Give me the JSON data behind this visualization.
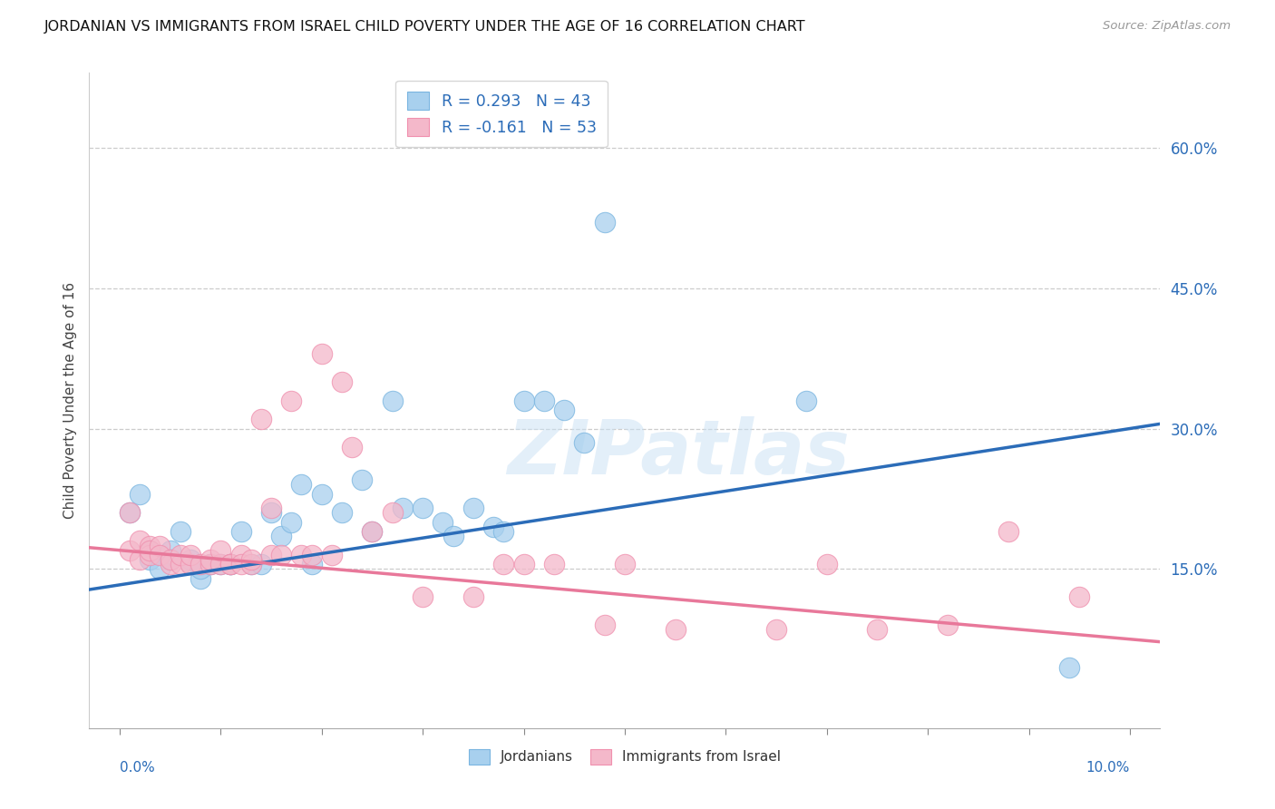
{
  "title": "JORDANIAN VS IMMIGRANTS FROM ISRAEL CHILD POVERTY UNDER THE AGE OF 16 CORRELATION CHART",
  "source": "Source: ZipAtlas.com",
  "ylabel": "Child Poverty Under the Age of 16",
  "blue_color": "#a8d0ee",
  "pink_color": "#f4b8ca",
  "blue_edge_color": "#7ab5e0",
  "pink_edge_color": "#f090ae",
  "blue_line_color": "#2b6cb8",
  "pink_line_color": "#e8789a",
  "watermark": "ZIPatlas",
  "blue_R": 0.293,
  "blue_N": 43,
  "pink_R": -0.161,
  "pink_N": 53,
  "right_yticks": [
    0.15,
    0.3,
    0.45,
    0.6
  ],
  "right_yticklabels": [
    "15.0%",
    "30.0%",
    "45.0%",
    "60.0%"
  ],
  "xlim": [
    0.0,
    0.1
  ],
  "ylim": [
    0.0,
    0.65
  ],
  "blue_line_x0": 0.0,
  "blue_line_y0": 0.133,
  "blue_line_x1": 0.1,
  "blue_line_y1": 0.3,
  "pink_line_x0": 0.0,
  "pink_line_y0": 0.17,
  "pink_line_x1": 0.1,
  "pink_line_y1": 0.075,
  "jordanians_x": [
    0.001,
    0.002,
    0.003,
    0.003,
    0.004,
    0.005,
    0.005,
    0.006,
    0.007,
    0.007,
    0.008,
    0.008,
    0.009,
    0.01,
    0.011,
    0.011,
    0.012,
    0.013,
    0.014,
    0.015,
    0.016,
    0.017,
    0.018,
    0.019,
    0.02,
    0.022,
    0.024,
    0.025,
    0.027,
    0.028,
    0.03,
    0.032,
    0.033,
    0.035,
    0.037,
    0.038,
    0.04,
    0.042,
    0.044,
    0.046,
    0.048,
    0.068,
    0.094
  ],
  "jordanians_y": [
    0.21,
    0.23,
    0.16,
    0.17,
    0.15,
    0.17,
    0.16,
    0.19,
    0.155,
    0.16,
    0.14,
    0.15,
    0.155,
    0.155,
    0.155,
    0.155,
    0.19,
    0.155,
    0.155,
    0.21,
    0.185,
    0.2,
    0.24,
    0.155,
    0.23,
    0.21,
    0.245,
    0.19,
    0.33,
    0.215,
    0.215,
    0.2,
    0.185,
    0.215,
    0.195,
    0.19,
    0.33,
    0.33,
    0.32,
    0.285,
    0.52,
    0.33,
    0.045
  ],
  "immigrants_x": [
    0.001,
    0.001,
    0.002,
    0.002,
    0.003,
    0.003,
    0.003,
    0.004,
    0.004,
    0.005,
    0.005,
    0.006,
    0.006,
    0.007,
    0.007,
    0.008,
    0.009,
    0.009,
    0.01,
    0.01,
    0.011,
    0.011,
    0.012,
    0.012,
    0.013,
    0.013,
    0.014,
    0.015,
    0.015,
    0.016,
    0.017,
    0.018,
    0.019,
    0.02,
    0.021,
    0.022,
    0.023,
    0.025,
    0.027,
    0.03,
    0.035,
    0.038,
    0.04,
    0.043,
    0.048,
    0.05,
    0.055,
    0.065,
    0.07,
    0.075,
    0.082,
    0.088,
    0.095
  ],
  "immigrants_y": [
    0.21,
    0.17,
    0.18,
    0.16,
    0.175,
    0.165,
    0.17,
    0.175,
    0.165,
    0.155,
    0.16,
    0.155,
    0.165,
    0.155,
    0.165,
    0.155,
    0.155,
    0.16,
    0.155,
    0.17,
    0.155,
    0.155,
    0.165,
    0.155,
    0.155,
    0.16,
    0.31,
    0.165,
    0.215,
    0.165,
    0.33,
    0.165,
    0.165,
    0.38,
    0.165,
    0.35,
    0.28,
    0.19,
    0.21,
    0.12,
    0.12,
    0.155,
    0.155,
    0.155,
    0.09,
    0.155,
    0.085,
    0.085,
    0.155,
    0.085,
    0.09,
    0.19,
    0.12
  ],
  "figsize": [
    14.06,
    8.92
  ],
  "dpi": 100
}
